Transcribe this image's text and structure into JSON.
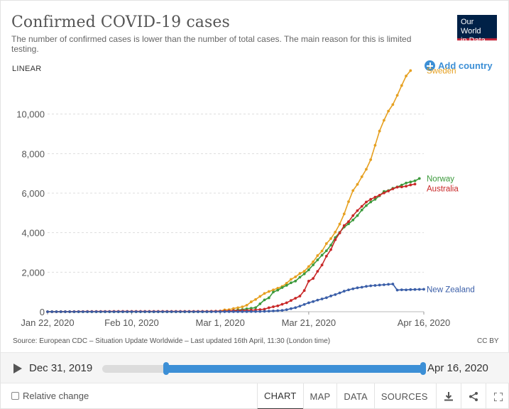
{
  "header": {
    "title": "Confirmed COVID-19 cases",
    "subtitle": "The number of confirmed cases is lower than the number of total cases. The main reason for this is limited testing.",
    "logo_line1": "Our World",
    "logo_line2": "in Data",
    "scale": "LINEAR",
    "add_country": "Add country"
  },
  "colors": {
    "sweden": "#e6a020",
    "norway": "#3c9a3c",
    "australia": "#c82828",
    "new_zealand": "#3a5ea8",
    "accent": "#3c8fd6"
  },
  "chart_data": {
    "type": "line",
    "title": "Confirmed COVID-19 cases",
    "xlabel": "",
    "ylabel": "",
    "ylim": [
      0,
      12000
    ],
    "ygrid": [
      0,
      2000,
      4000,
      6000,
      8000,
      10000
    ],
    "y_tick_labels": [
      "0",
      "2,000",
      "4,000",
      "6,000",
      "8,000",
      "10,000"
    ],
    "x_tick_labels": [
      "Jan 22, 2020",
      "Feb 10, 2020",
      "Mar 1, 2020",
      "Mar 21, 2020",
      "Apr 16, 2020"
    ],
    "x_tick_days": [
      0,
      19,
      39,
      59,
      85
    ],
    "x_start": "Jan 22, 2020",
    "x_end": "Apr 16, 2020",
    "day_count": 86,
    "legend": "inline-right",
    "series": [
      {
        "name": "Sweden",
        "color_key": "sweden",
        "start_day": 32,
        "values": [
          1,
          1,
          7,
          12,
          14,
          15,
          21,
          35,
          94,
          101,
          161,
          203,
          248,
          326,
          500,
          620,
          775,
          924,
          1022,
          1103,
          1190,
          1279,
          1439,
          1639,
          1763,
          1934,
          2046,
          2286,
          2526,
          2840,
          3069,
          3447,
          3700,
          4028,
          4435,
          4947,
          5568,
          6131,
          6443,
          6830,
          7206,
          7693,
          8419,
          9141,
          9685,
          10151,
          10483,
          10948,
          11445,
          11927,
          12200
        ]
      },
      {
        "name": "Norway",
        "color_key": "norway",
        "start_day": 36,
        "values": [
          1,
          6,
          15,
          19,
          25,
          32,
          56,
          87,
          108,
          147,
          176,
          205,
          400,
          598,
          702,
          996,
          1090,
          1221,
          1333,
          1463,
          1550,
          1746,
          1914,
          2118,
          2371,
          2621,
          2863,
          3084,
          3369,
          3755,
          4015,
          4284,
          4445,
          4641,
          4863,
          5147,
          5370,
          5550,
          5687,
          5865,
          6086,
          6131,
          6244,
          6314,
          6409,
          6512,
          6566,
          6623,
          6740
        ]
      },
      {
        "name": "Australia",
        "color_key": "australia",
        "start_day": 3,
        "values": [
          4,
          5,
          5,
          6,
          9,
          9,
          12,
          12,
          12,
          13,
          13,
          14,
          15,
          15,
          15,
          15,
          15,
          15,
          15,
          15,
          15,
          15,
          15,
          15,
          15,
          15,
          15,
          15,
          15,
          15,
          15,
          15,
          15,
          15,
          23,
          25,
          27,
          30,
          39,
          52,
          55,
          60,
          63,
          76,
          91,
          107,
          128,
          200,
          250,
          297,
          377,
          452,
          568,
          681,
          791,
          1071,
          1549,
          1682,
          2044,
          2364,
          2810,
          3143,
          3640,
          3984,
          4361,
          4559,
          4862,
          5116,
          5330,
          5550,
          5687,
          5795,
          5895,
          6010,
          6108,
          6215,
          6303,
          6315,
          6351,
          6415,
          6458
        ]
      },
      {
        "name": "New Zealand",
        "color_key": "new_zealand",
        "start_day": 37,
        "values": [
          1,
          1,
          2,
          3,
          5,
          5,
          5,
          5,
          5,
          8,
          8,
          12,
          20,
          28,
          39,
          52,
          66,
          102,
          155,
          205,
          283,
          368,
          451,
          514,
          589,
          647,
          708,
          797,
          868,
          950,
          1039,
          1106,
          1160,
          1210,
          1239,
          1283,
          1312,
          1330,
          1349,
          1366,
          1386,
          1401,
          1094,
          1110,
          1105,
          1120,
          1125,
          1130,
          1135
        ]
      }
    ]
  },
  "footer": {
    "source": "Source: European CDC – Situation Update Worldwide – Last updated 16th April, 11:30 (London time)",
    "license": "CC BY"
  },
  "timeline": {
    "start_label": "Dec 31, 2019",
    "end_label": "Apr 16, 2020",
    "range_start_fraction": 0.2,
    "range_end_fraction": 1.0
  },
  "controls": {
    "relative_change": "Relative change",
    "tabs": [
      "CHART",
      "MAP",
      "DATA",
      "SOURCES"
    ],
    "active_tab": "CHART"
  }
}
